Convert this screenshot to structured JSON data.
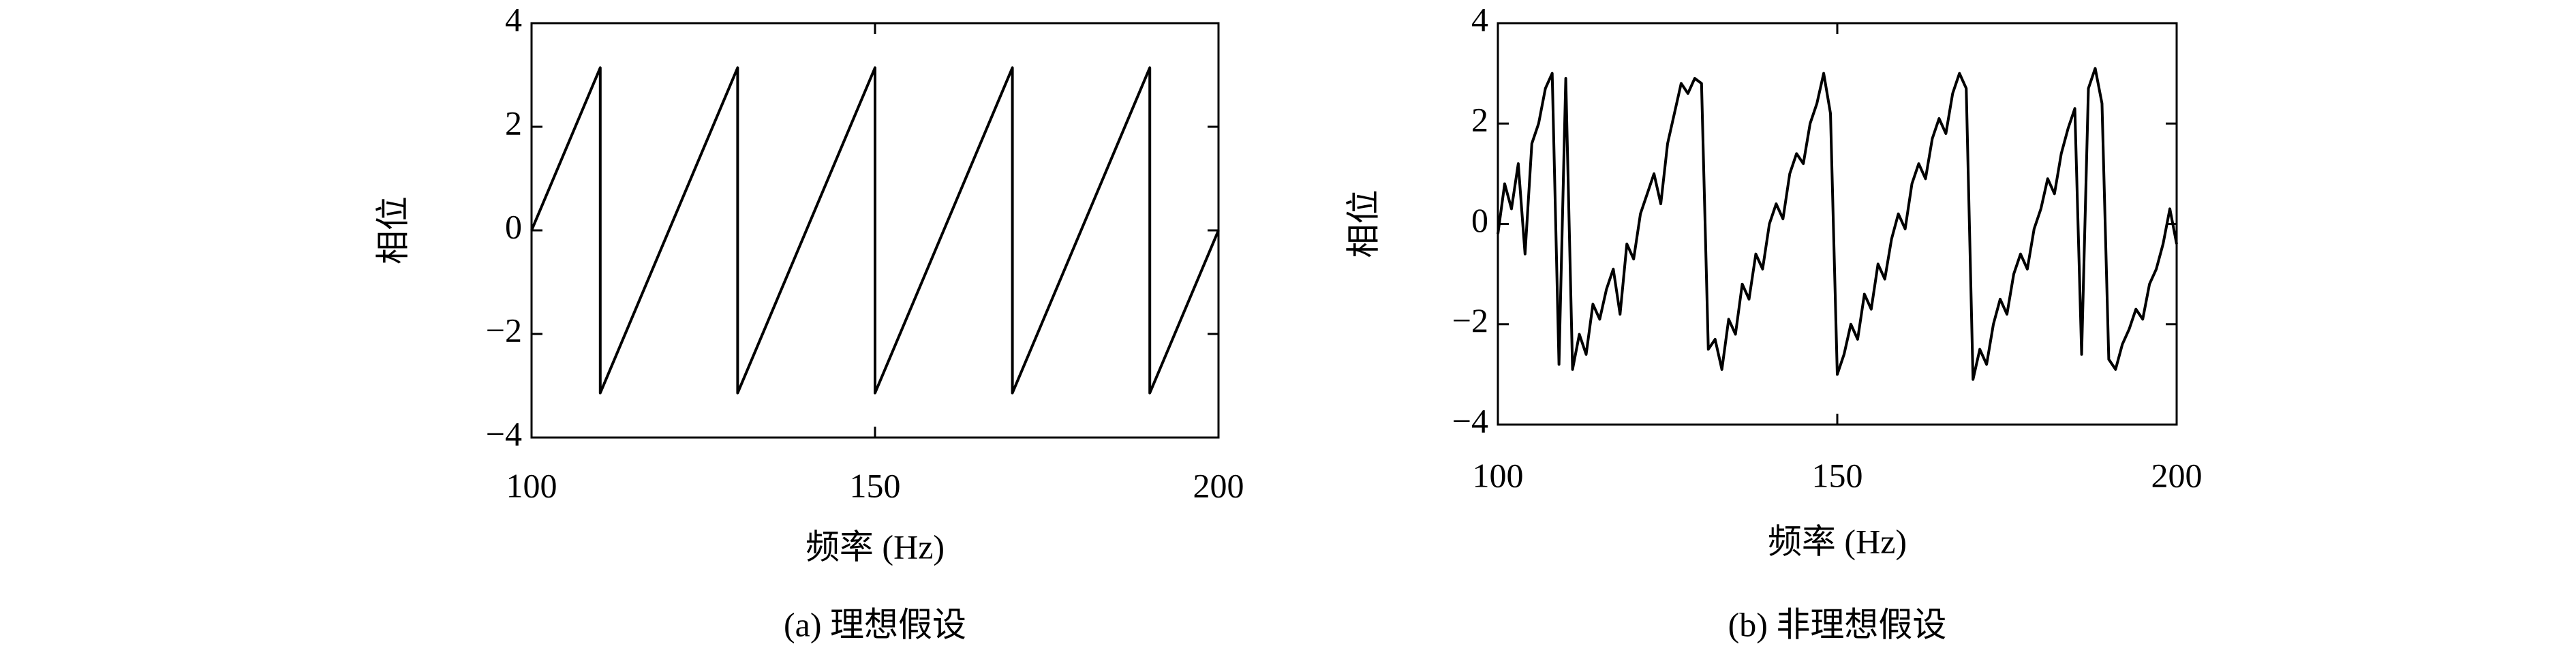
{
  "chart_data": [
    {
      "type": "line",
      "caption": "(a) 理想假设",
      "xlabel": "频率 (Hz)",
      "ylabel": "相位",
      "color": "#000000",
      "x": [
        100,
        110,
        110,
        130,
        130,
        150,
        150,
        170,
        170,
        190,
        190,
        200
      ],
      "values": [
        0,
        3.14,
        -3.14,
        3.14,
        -3.14,
        3.14,
        -3.14,
        3.14,
        -3.14,
        3.14,
        -3.14,
        0
      ],
      "xlim": [
        100,
        200
      ],
      "xticks": [
        100,
        150,
        200
      ],
      "ylim": [
        -4,
        4
      ],
      "yticks": [
        {
          "value": -4,
          "label": "−4"
        },
        {
          "value": -2,
          "label": "−2"
        },
        0,
        2,
        4
      ]
    },
    {
      "type": "line",
      "caption": "(b) 非理想假设",
      "xlabel": "频率 (Hz)",
      "ylabel": "相位",
      "color": "#000000",
      "x": [
        100,
        101,
        102,
        103,
        104,
        105,
        106,
        107,
        108,
        109,
        110,
        111,
        112,
        113,
        114,
        115,
        116,
        117,
        118,
        119,
        120,
        121,
        122,
        123,
        124,
        125,
        126,
        127,
        128,
        129,
        130,
        131,
        132,
        133,
        134,
        135,
        136,
        137,
        138,
        139,
        140,
        141,
        142,
        143,
        144,
        145,
        146,
        147,
        148,
        149,
        150,
        151,
        152,
        153,
        154,
        155,
        156,
        157,
        158,
        159,
        160,
        161,
        162,
        163,
        164,
        165,
        166,
        167,
        168,
        169,
        170,
        171,
        172,
        173,
        174,
        175,
        176,
        177,
        178,
        179,
        180,
        181,
        182,
        183,
        184,
        185,
        186,
        187,
        188,
        189,
        190,
        191,
        192,
        193,
        194,
        195,
        196,
        197,
        198,
        199,
        200
      ],
      "values": [
        -0.2,
        0.8,
        0.3,
        1.2,
        -0.6,
        1.6,
        2.0,
        2.7,
        3.0,
        -2.8,
        2.9,
        -2.9,
        -2.2,
        -2.6,
        -1.6,
        -1.9,
        -1.3,
        -0.9,
        -1.8,
        -0.4,
        -0.7,
        0.2,
        0.6,
        1.0,
        0.4,
        1.6,
        2.2,
        2.8,
        2.6,
        2.9,
        2.8,
        -2.5,
        -2.3,
        -2.9,
        -1.9,
        -2.2,
        -1.2,
        -1.5,
        -0.6,
        -0.9,
        0.0,
        0.4,
        0.1,
        1.0,
        1.4,
        1.2,
        2.0,
        2.4,
        3.0,
        2.2,
        -3.0,
        -2.6,
        -2.0,
        -2.3,
        -1.4,
        -1.7,
        -0.8,
        -1.1,
        -0.3,
        0.2,
        -0.1,
        0.8,
        1.2,
        0.9,
        1.7,
        2.1,
        1.8,
        2.6,
        3.0,
        2.7,
        -3.1,
        -2.5,
        -2.8,
        -2.0,
        -1.5,
        -1.8,
        -1.0,
        -0.6,
        -0.9,
        -0.1,
        0.3,
        0.9,
        0.6,
        1.4,
        1.9,
        2.3,
        -2.6,
        2.7,
        3.1,
        2.4,
        -2.7,
        -2.9,
        -2.4,
        -2.1,
        -1.7,
        -1.9,
        -1.2,
        -0.9,
        -0.4,
        0.3,
        -0.4
      ],
      "xlim": [
        100,
        200
      ],
      "xticks": [
        100,
        150,
        200
      ],
      "ylim": [
        -4,
        4
      ],
      "yticks": [
        {
          "value": -4,
          "label": "−4"
        },
        {
          "value": -2,
          "label": "−2"
        },
        0,
        2,
        4
      ]
    }
  ]
}
